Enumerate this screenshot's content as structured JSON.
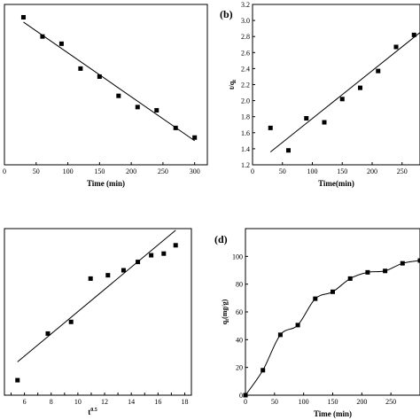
{
  "chart_data": [
    {
      "type": "scatter",
      "panel_label": "",
      "xlabel": "Time (min)",
      "ylabel": "",
      "xlim": [
        0,
        320
      ],
      "ylim": [
        -1.0,
        1.0
      ],
      "xticks": [
        0,
        50,
        100,
        150,
        200,
        250,
        300
      ],
      "series": [
        {
          "x": [
            30,
            60,
            90,
            120,
            150,
            180,
            210,
            240,
            270,
            300
          ],
          "y": [
            0.84,
            0.6,
            0.51,
            0.2,
            0.1,
            -0.14,
            -0.28,
            -0.32,
            -0.54,
            -0.66
          ]
        }
      ],
      "fit": {
        "x": [
          30,
          300
        ],
        "y": [
          0.78,
          -0.7
        ]
      }
    },
    {
      "type": "scatter",
      "panel_label": "(b)",
      "xlabel": "Time(min)",
      "ylabel": "t/qt",
      "xlim": [
        0,
        280
      ],
      "ylim": [
        1.2,
        3.2
      ],
      "xticks": [
        0,
        50,
        100,
        150,
        200,
        250
      ],
      "yticks": [
        1.2,
        1.4,
        1.6,
        1.8,
        2.0,
        2.2,
        2.4,
        2.6,
        2.8,
        3.0,
        3.2
      ],
      "ytick_labels": [
        "1.2",
        "1.4",
        "1.6",
        "1.8",
        "2.0",
        "2.2",
        "2.4",
        "2.6",
        "2.8",
        "3.0",
        "3.2"
      ],
      "series": [
        {
          "x": [
            30,
            60,
            90,
            120,
            150,
            180,
            210,
            240,
            270
          ],
          "y": [
            1.66,
            1.38,
            1.78,
            1.73,
            2.02,
            2.16,
            2.37,
            2.67,
            2.82
          ]
        }
      ],
      "fit": {
        "x": [
          30,
          280
        ],
        "y": [
          1.36,
          2.85
        ]
      }
    },
    {
      "type": "scatter",
      "panel_label": "",
      "xlabel": "t0.5",
      "ylabel": "",
      "xlim": [
        4.5,
        18.5
      ],
      "ylim": [
        0,
        100
      ],
      "xticks": [
        5,
        6,
        7,
        8,
        9,
        10,
        11,
        12,
        13,
        14,
        15,
        16,
        17,
        18
      ],
      "xtick_labels": [
        "",
        "6",
        "",
        "8",
        "",
        "10",
        "",
        "12",
        "",
        "14",
        "",
        "16",
        "",
        "18"
      ],
      "series": [
        {
          "x": [
            5.48,
            7.75,
            9.49,
            10.95,
            12.25,
            13.42,
            14.49,
            15.49,
            16.43,
            17.32
          ],
          "y": [
            9,
            37,
            44,
            70,
            72,
            75,
            80,
            84,
            85,
            90
          ]
        }
      ],
      "fit": {
        "x": [
          5.48,
          17.32
        ],
        "y": [
          20,
          99
        ]
      }
    },
    {
      "type": "line",
      "panel_label": "(d)",
      "xlabel": "Time (min)",
      "ylabel": "qt(mg/g)",
      "xlim": [
        0,
        300
      ],
      "ylim": [
        0,
        120
      ],
      "xticks": [
        0,
        50,
        100,
        150,
        200,
        250
      ],
      "yticks": [
        0,
        20,
        40,
        60,
        80,
        100
      ],
      "series": [
        {
          "x": [
            0,
            30,
            60,
            90,
            120,
            150,
            180,
            210,
            240,
            270,
            300
          ],
          "y": [
            0,
            18,
            43.5,
            50.5,
            69.5,
            74.5,
            84,
            88.5,
            89.5,
            95,
            97
          ]
        }
      ]
    }
  ]
}
